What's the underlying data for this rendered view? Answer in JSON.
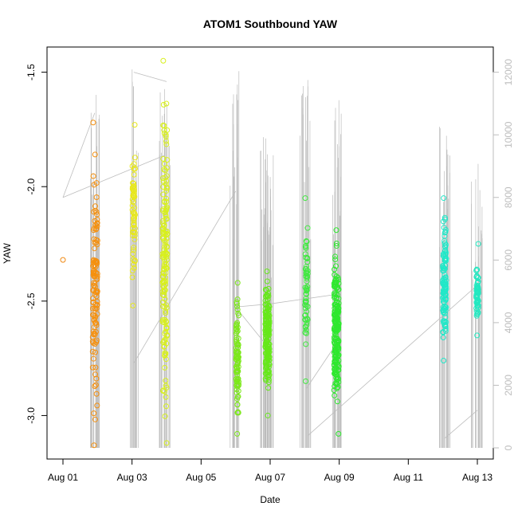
{
  "chart_data": {
    "type": "scatter",
    "title": "ATOM1 Southbound YAW",
    "xlabel": "Date",
    "ylabel": "YAW",
    "x_ticks": [
      "Aug 01",
      "Aug 03",
      "Aug 05",
      "Aug 07",
      "Aug 09",
      "Aug 11",
      "Aug 13"
    ],
    "y_ticks": [
      "-1.5",
      "-2.0",
      "-2.5",
      "-3.0"
    ],
    "y2_ticks": [
      "0",
      "2000",
      "4000",
      "6000",
      "8000",
      "10000",
      "12000"
    ],
    "xlim": [
      "2014-08-01",
      "2014-08-13"
    ],
    "ylim": [
      -3.19,
      -1.39
    ],
    "y2lim": [
      0,
      12500
    ],
    "grid": false,
    "point_color_scale": "orange-yellow-green-cyan by date",
    "background_trace_color": "#bdbdbd",
    "clusters": [
      {
        "date": "2014-08-01",
        "center_day": 0.0,
        "spread": 0.0,
        "y_min": -2.32,
        "y_max": -2.32,
        "n": 1,
        "color": "#f08a14"
      },
      {
        "date": "2014-08-01",
        "center_day": 0.93,
        "spread": 0.07,
        "y_min": -3.13,
        "y_max": -1.72,
        "n": 120,
        "color": "#f5900e"
      },
      {
        "date": "2014-08-03",
        "center_day": 2.05,
        "spread": 0.04,
        "y_min": -2.52,
        "y_max": -1.73,
        "n": 60,
        "color": "#e8e81a"
      },
      {
        "date": "2014-08-03",
        "center_day": 2.95,
        "spread": 0.07,
        "y_min": -3.12,
        "y_max": -1.45,
        "n": 160,
        "color": "#d8f01c"
      },
      {
        "date": "2014-08-06",
        "center_day": 5.05,
        "spread": 0.04,
        "y_min": -3.08,
        "y_max": -2.42,
        "n": 90,
        "color": "#7ce81a"
      },
      {
        "date": "2014-08-06",
        "center_day": 5.92,
        "spread": 0.06,
        "y_min": -3.0,
        "y_max": -2.37,
        "n": 170,
        "color": "#66e81a"
      },
      {
        "date": "2014-08-08",
        "center_day": 7.05,
        "spread": 0.04,
        "y_min": -2.85,
        "y_max": -2.05,
        "n": 60,
        "color": "#40e840"
      },
      {
        "date": "2014-08-08",
        "center_day": 7.92,
        "spread": 0.07,
        "y_min": -3.08,
        "y_max": -2.19,
        "n": 200,
        "color": "#2ee82e"
      },
      {
        "date": "2014-08-12",
        "center_day": 11.05,
        "spread": 0.05,
        "y_min": -2.76,
        "y_max": -2.05,
        "n": 110,
        "color": "#20e8c8"
      },
      {
        "date": "2014-08-12",
        "center_day": 12.0,
        "spread": 0.03,
        "y_min": -2.65,
        "y_max": -2.25,
        "n": 60,
        "color": "#22e8c0"
      }
    ],
    "trace_spikes": [
      {
        "day": 0.92,
        "y2_top": 11300
      },
      {
        "day": 2.03,
        "y2_top": 12400
      },
      {
        "day": 2.95,
        "y2_top": 11700
      },
      {
        "day": 5.0,
        "y2_top": 12050
      },
      {
        "day": 5.85,
        "y2_top": 10000
      },
      {
        "day": 5.95,
        "y2_top": 9650
      },
      {
        "day": 7.02,
        "y2_top": 11800
      },
      {
        "day": 7.95,
        "y2_top": 11600
      },
      {
        "day": 11.05,
        "y2_top": 10300
      },
      {
        "day": 11.98,
        "y2_top": 9150
      }
    ],
    "trace_connectors": [
      {
        "from": [
          0.0,
          8000
        ],
        "to": [
          0.92,
          10700
        ]
      },
      {
        "from": [
          0.0,
          8000
        ],
        "to": [
          2.95,
          9350
        ]
      },
      {
        "from": [
          2.05,
          12000
        ],
        "to": [
          3.0,
          11700
        ]
      },
      {
        "from": [
          2.05,
          2700
        ],
        "to": [
          5.0,
          8200
        ]
      },
      {
        "from": [
          5.0,
          4500
        ],
        "to": [
          6.0,
          4600
        ]
      },
      {
        "from": [
          5.0,
          4500
        ],
        "to": [
          5.95,
          3200
        ]
      },
      {
        "from": [
          6.0,
          4600
        ],
        "to": [
          7.9,
          4900
        ]
      },
      {
        "from": [
          7.05,
          1900
        ],
        "to": [
          7.9,
          3300
        ]
      },
      {
        "from": [
          7.1,
          400
        ],
        "to": [
          12.0,
          5200
        ]
      },
      {
        "from": [
          11.05,
          300
        ],
        "to": [
          12.0,
          1200
        ]
      }
    ]
  }
}
